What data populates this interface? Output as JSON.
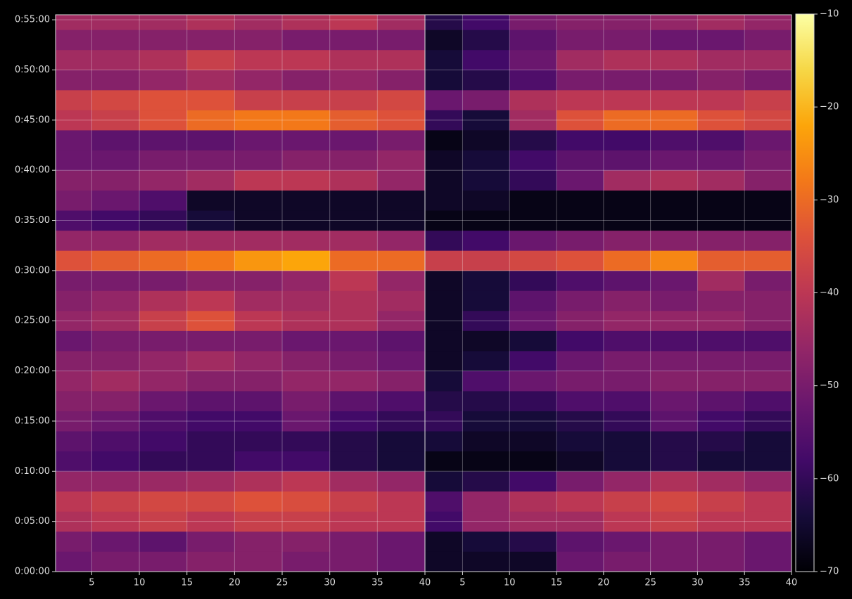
{
  "chart_data": {
    "type": "heatmap",
    "colormap": "inferno",
    "grid": true,
    "ylim": [
      0,
      3330
    ],
    "yticks": [
      {
        "value": 0,
        "label": "0:00:00"
      },
      {
        "value": 300,
        "label": "0:05:00"
      },
      {
        "value": 600,
        "label": "0:10:00"
      },
      {
        "value": 900,
        "label": "0:15:00"
      },
      {
        "value": 1200,
        "label": "0:20:00"
      },
      {
        "value": 1500,
        "label": "0:25:00"
      },
      {
        "value": 1800,
        "label": "0:30:00"
      },
      {
        "value": 2100,
        "label": "0:35:00"
      },
      {
        "value": 2400,
        "label": "0:40:00"
      },
      {
        "value": 2700,
        "label": "0:45:00"
      },
      {
        "value": 3000,
        "label": "0:50:00"
      },
      {
        "value": 3300,
        "label": "0:55:00"
      }
    ],
    "ybins": [
      0,
      120,
      240,
      360,
      480,
      600,
      720,
      840,
      960,
      1080,
      1200,
      1320,
      1440,
      1560,
      1680,
      1800,
      1920,
      2040,
      2160,
      2280,
      2400,
      2520,
      2640,
      2760,
      2880,
      3000,
      3120,
      3240,
      3330
    ],
    "clim": [
      -70,
      -10
    ],
    "cticks": [
      {
        "value": -70,
        "label": "−70"
      },
      {
        "value": -60,
        "label": "−60"
      },
      {
        "value": -50,
        "label": "−50"
      },
      {
        "value": -40,
        "label": "−40"
      },
      {
        "value": -30,
        "label": "−30"
      },
      {
        "value": -20,
        "label": "−20"
      },
      {
        "value": -10,
        "label": "−10"
      }
    ],
    "panels": [
      {
        "xlim": [
          1.2,
          40
        ],
        "xticks": [
          5,
          10,
          15,
          20,
          25,
          30,
          35,
          40
        ],
        "xbins": [
          1.2,
          5,
          10,
          15,
          20,
          25,
          30,
          35,
          40
        ],
        "values": [
          [
            -52,
            -50,
            -50,
            -48,
            -48,
            -50,
            -50,
            -52
          ],
          [
            -50,
            -52,
            -54,
            -50,
            -48,
            -48,
            -50,
            -52
          ],
          [
            -42,
            -40,
            -38,
            -40,
            -38,
            -38,
            -40,
            -40
          ],
          [
            -40,
            -38,
            -36,
            -36,
            -34,
            -35,
            -38,
            -40
          ],
          [
            -46,
            -46,
            -45,
            -44,
            -42,
            -40,
            -44,
            -46
          ],
          [
            -56,
            -58,
            -60,
            -60,
            -58,
            -58,
            -62,
            -64
          ],
          [
            -54,
            -56,
            -58,
            -60,
            -60,
            -60,
            -62,
            -64
          ],
          [
            -50,
            -52,
            -56,
            -58,
            -58,
            -52,
            -58,
            -60
          ],
          [
            -48,
            -48,
            -52,
            -54,
            -54,
            -50,
            -54,
            -56
          ],
          [
            -46,
            -44,
            -46,
            -48,
            -48,
            -46,
            -46,
            -48
          ],
          [
            -48,
            -48,
            -46,
            -44,
            -46,
            -48,
            -50,
            -52
          ],
          [
            -52,
            -50,
            -50,
            -50,
            -50,
            -52,
            -52,
            -54
          ],
          [
            -46,
            -44,
            -38,
            -34,
            -40,
            -42,
            -42,
            -46
          ],
          [
            -48,
            -46,
            -42,
            -40,
            -44,
            -44,
            -42,
            -44
          ],
          [
            -50,
            -50,
            -50,
            -48,
            -48,
            -46,
            -40,
            -46
          ],
          [
            -34,
            -32,
            -30,
            -28,
            -24,
            -22,
            -30,
            -30
          ],
          [
            -46,
            -46,
            -44,
            -44,
            -44,
            -44,
            -44,
            -46
          ],
          [
            -56,
            -58,
            -60,
            -64,
            -66,
            -66,
            -66,
            -66
          ],
          [
            -50,
            -52,
            -56,
            -66,
            -66,
            -66,
            -66,
            -66
          ],
          [
            -48,
            -48,
            -46,
            -44,
            -40,
            -40,
            -42,
            -46
          ],
          [
            -52,
            -52,
            -50,
            -50,
            -50,
            -48,
            -48,
            -46
          ],
          [
            -52,
            -54,
            -54,
            -54,
            -52,
            -52,
            -52,
            -50
          ],
          [
            -40,
            -38,
            -34,
            -30,
            -28,
            -28,
            -32,
            -34
          ],
          [
            -38,
            -36,
            -34,
            -34,
            -38,
            -38,
            -38,
            -36
          ],
          [
            -48,
            -48,
            -46,
            -44,
            -46,
            -48,
            -46,
            -48
          ],
          [
            -44,
            -44,
            -42,
            -38,
            -40,
            -40,
            -42,
            -42
          ],
          [
            -48,
            -48,
            -48,
            -48,
            -48,
            -50,
            -50,
            -50
          ],
          [
            -44,
            -44,
            -44,
            -42,
            -44,
            -42,
            -40,
            -44
          ]
        ]
      },
      {
        "xlim": [
          1,
          40
        ],
        "xticks": [
          5,
          10,
          15,
          20,
          25,
          30,
          35,
          40
        ],
        "xbins": [
          1,
          5,
          10,
          15,
          20,
          25,
          30,
          35,
          40
        ],
        "values": [
          [
            -66,
            -66,
            -66,
            -52,
            -50,
            -50,
            -50,
            -52
          ],
          [
            -66,
            -64,
            -62,
            -54,
            -52,
            -50,
            -50,
            -52
          ],
          [
            -58,
            -46,
            -44,
            -44,
            -40,
            -38,
            -40,
            -40
          ],
          [
            -56,
            -46,
            -42,
            -40,
            -38,
            -36,
            -38,
            -40
          ],
          [
            -64,
            -62,
            -58,
            -50,
            -46,
            -42,
            -44,
            -46
          ],
          [
            -68,
            -68,
            -68,
            -66,
            -64,
            -62,
            -64,
            -64
          ],
          [
            -64,
            -66,
            -66,
            -64,
            -64,
            -62,
            -62,
            -64
          ],
          [
            -60,
            -64,
            -64,
            -62,
            -60,
            -54,
            -58,
            -60
          ],
          [
            -62,
            -62,
            -60,
            -56,
            -56,
            -52,
            -54,
            -56
          ],
          [
            -64,
            -56,
            -52,
            -50,
            -50,
            -48,
            -48,
            -48
          ],
          [
            -66,
            -64,
            -58,
            -52,
            -50,
            -50,
            -50,
            -50
          ],
          [
            -66,
            -66,
            -64,
            -58,
            -56,
            -56,
            -56,
            -56
          ],
          [
            -66,
            -60,
            -52,
            -48,
            -46,
            -46,
            -46,
            -48
          ],
          [
            -66,
            -64,
            -54,
            -50,
            -48,
            -50,
            -48,
            -48
          ],
          [
            -66,
            -64,
            -60,
            -56,
            -54,
            -52,
            -44,
            -50
          ],
          [
            -38,
            -38,
            -36,
            -34,
            -30,
            -26,
            -32,
            -32
          ],
          [
            -60,
            -58,
            -52,
            -50,
            -48,
            -48,
            -48,
            -48
          ],
          [
            -68,
            -68,
            -68,
            -68,
            -68,
            -68,
            -68,
            -68
          ],
          [
            -66,
            -66,
            -68,
            -68,
            -68,
            -68,
            -68,
            -68
          ],
          [
            -66,
            -64,
            -60,
            -52,
            -44,
            -42,
            -44,
            -48
          ],
          [
            -66,
            -64,
            -58,
            -54,
            -54,
            -52,
            -52,
            -50
          ],
          [
            -68,
            -66,
            -62,
            -58,
            -58,
            -56,
            -56,
            -52
          ],
          [
            -60,
            -64,
            -44,
            -34,
            -30,
            -30,
            -34,
            -36
          ],
          [
            -52,
            -50,
            -42,
            -40,
            -40,
            -40,
            -40,
            -38
          ],
          [
            -64,
            -62,
            -56,
            -50,
            -50,
            -50,
            -48,
            -50
          ],
          [
            -64,
            -58,
            -52,
            -44,
            -42,
            -42,
            -44,
            -44
          ],
          [
            -66,
            -62,
            -54,
            -50,
            -50,
            -52,
            -52,
            -50
          ],
          [
            -62,
            -58,
            -50,
            -48,
            -48,
            -46,
            -44,
            -46
          ]
        ]
      }
    ]
  }
}
